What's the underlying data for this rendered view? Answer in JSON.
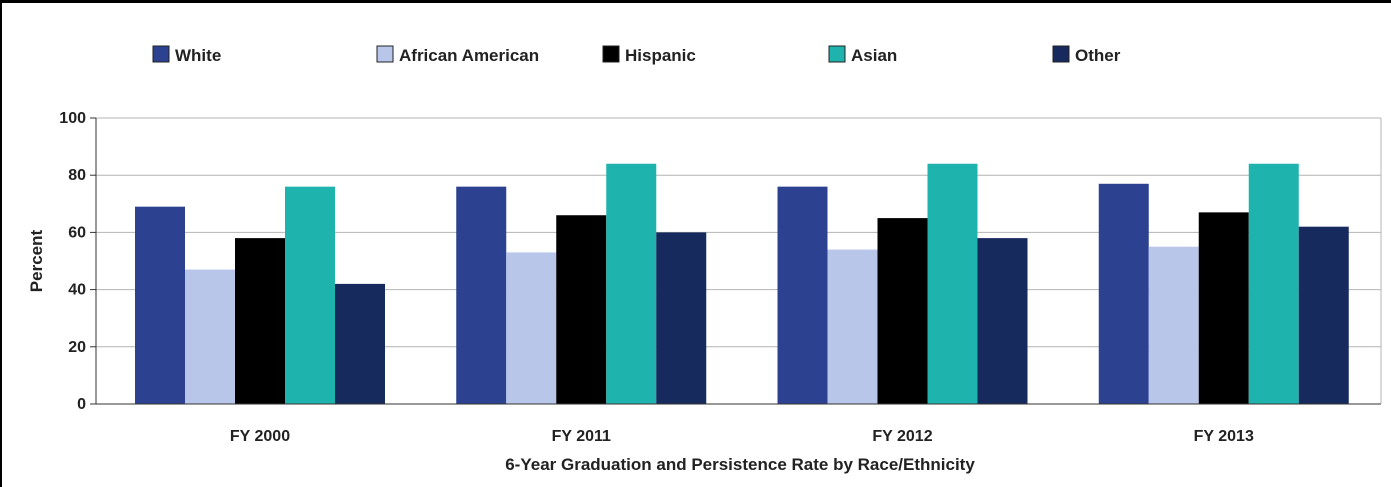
{
  "chart_data": {
    "type": "bar",
    "title": "",
    "xlabel": "6-Year Graduation and Persistence Rate by Race/Ethnicity",
    "ylabel": "Percent",
    "ylim": [
      0,
      100
    ],
    "yticks": [
      0,
      20,
      40,
      60,
      80,
      100
    ],
    "grid": true,
    "legend_position": "top",
    "categories": [
      "FY 2000",
      "FY 2011",
      "FY 2012",
      "FY 2013"
    ],
    "series": [
      {
        "name": "White",
        "color": "#2c4190",
        "values": [
          69,
          76,
          76,
          77
        ]
      },
      {
        "name": "African American",
        "color": "#b8c6ea",
        "values": [
          47,
          53,
          54,
          55
        ]
      },
      {
        "name": "Hispanic",
        "color": "#000000",
        "values": [
          58,
          66,
          65,
          67
        ]
      },
      {
        "name": "Asian",
        "color": "#1fb3ad",
        "values": [
          76,
          84,
          84,
          84
        ]
      },
      {
        "name": "Other",
        "color": "#172a5e",
        "values": [
          42,
          60,
          58,
          62
        ]
      }
    ]
  }
}
